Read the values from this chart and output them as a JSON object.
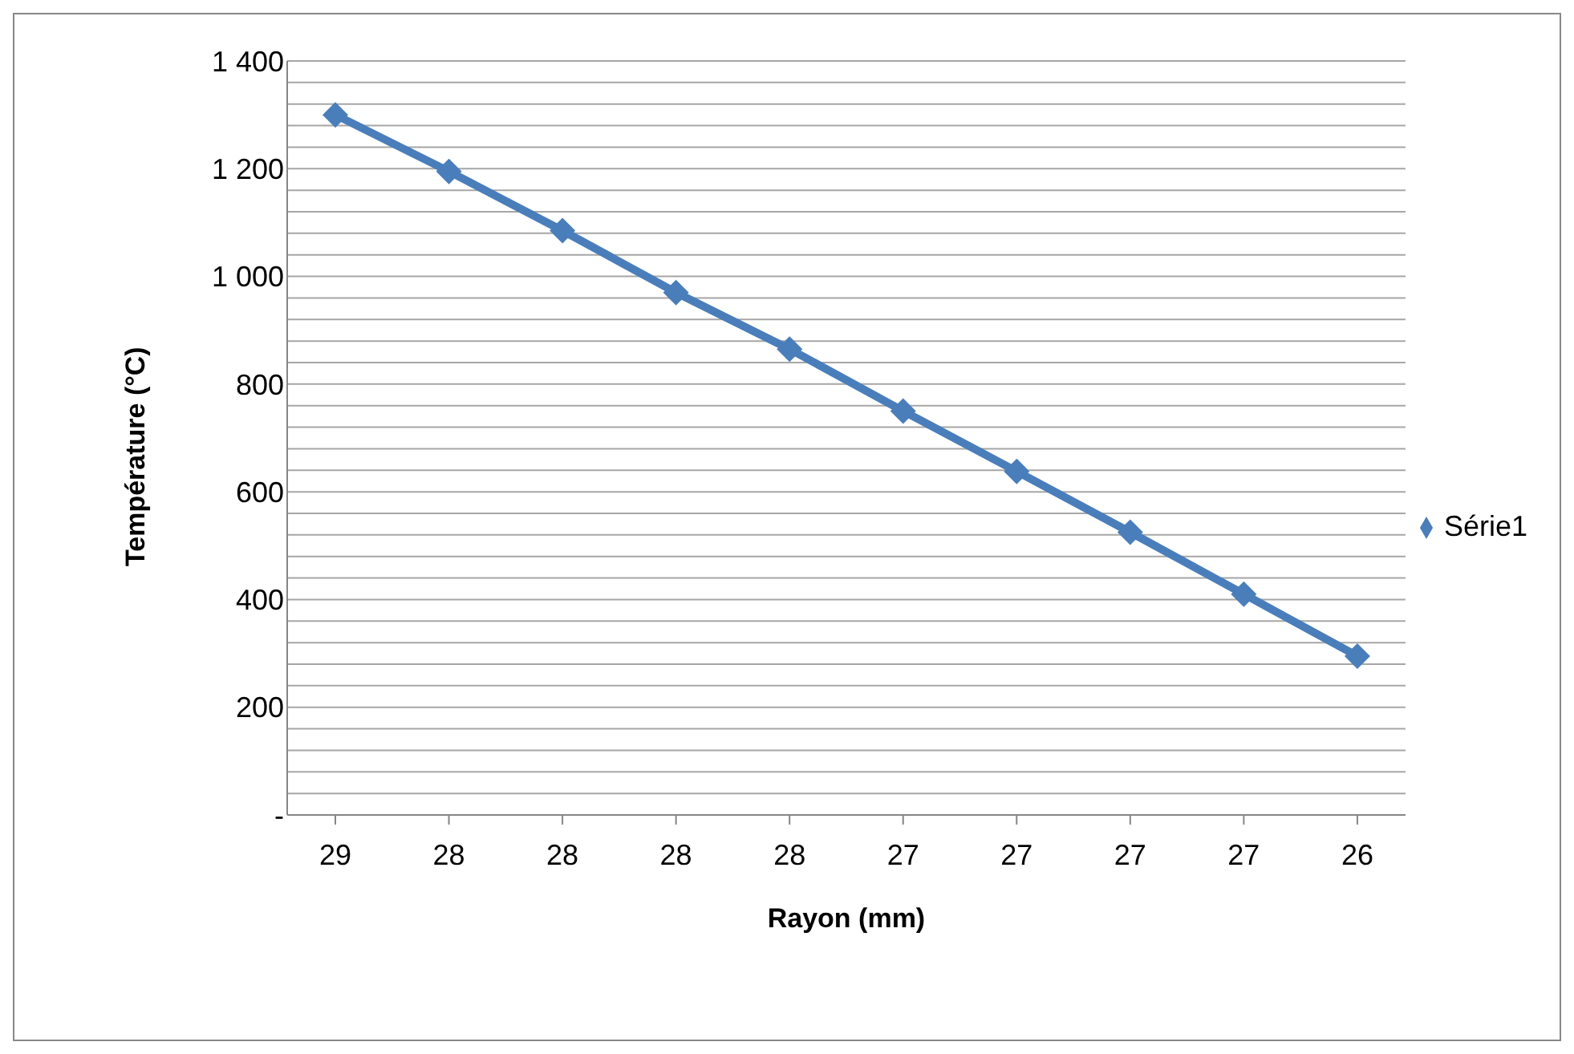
{
  "chart_data": {
    "type": "line",
    "xlabel": "Rayon (mm)",
    "ylabel": "Température (°C)",
    "categories": [
      "29",
      "28",
      "28",
      "28",
      "28",
      "27",
      "27",
      "27",
      "27",
      "26"
    ],
    "series": [
      {
        "name": "Série1",
        "color": "#4a7ebb",
        "values": [
          1300,
          1195,
          1085,
          970,
          865,
          750,
          638,
          525,
          410,
          295
        ]
      }
    ],
    "ylim": [
      0,
      1400
    ],
    "yticks": [
      {
        "value": 0,
        "label": "-"
      },
      {
        "value": 40,
        "label": null
      },
      {
        "value": 80,
        "label": null
      },
      {
        "value": 120,
        "label": null
      },
      {
        "value": 160,
        "label": null
      },
      200,
      {
        "value": 240,
        "label": null
      },
      {
        "value": 280,
        "label": null
      },
      {
        "value": 320,
        "label": null
      },
      {
        "value": 360,
        "label": null
      },
      400,
      {
        "value": 440,
        "label": null
      },
      {
        "value": 480,
        "label": null
      },
      {
        "value": 520,
        "label": null
      },
      {
        "value": 560,
        "label": null
      },
      600,
      {
        "value": 640,
        "label": null
      },
      {
        "value": 680,
        "label": null
      },
      {
        "value": 720,
        "label": null
      },
      {
        "value": 760,
        "label": null
      },
      800,
      {
        "value": 840,
        "label": null
      },
      {
        "value": 880,
        "label": null
      },
      {
        "value": 920,
        "label": null
      },
      {
        "value": 960,
        "label": null
      },
      {
        "value": 1000,
        "label": "1 000"
      },
      {
        "value": 1040,
        "label": null
      },
      {
        "value": 1080,
        "label": null
      },
      {
        "value": 1120,
        "label": null
      },
      {
        "value": 1160,
        "label": null
      },
      {
        "value": 1200,
        "label": "1 200"
      },
      {
        "value": 1240,
        "label": null
      },
      {
        "value": 1280,
        "label": null
      },
      {
        "value": 1320,
        "label": null
      },
      {
        "value": 1360,
        "label": null
      },
      {
        "value": 1400,
        "label": "1 400"
      }
    ],
    "grid": "y",
    "legend": "right",
    "marker": "diamond",
    "line_style": "solid"
  }
}
